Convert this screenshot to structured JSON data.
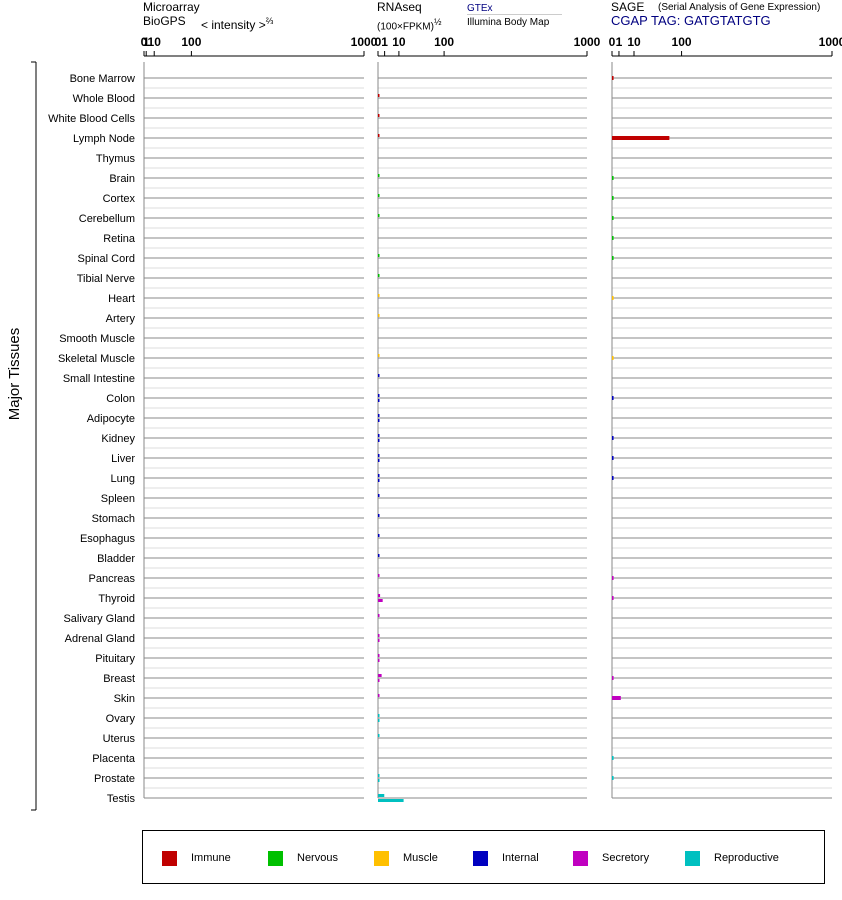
{
  "header": {
    "microarray_line1": "Microarray",
    "microarray_line2": "BioGPS",
    "microarray_scale": "< intensity >",
    "microarray_exp": "⅔",
    "rnaseq_line1": "RNAseq",
    "rnaseq_scale": "(100×FPKM)",
    "rnaseq_exp": "½",
    "gtex_label": "GTEx",
    "bodymap_label": "Illumina Body Map",
    "sage_line1": "SAGE",
    "sage_desc": "(Serial Analysis of Gene Expression)",
    "sage_tag": "CGAP TAG: GATGTATGTG"
  },
  "y_group_label": "Major Tissues",
  "legend": [
    {
      "label": "Immune",
      "color": "#c00000"
    },
    {
      "label": "Nervous",
      "color": "#00c000"
    },
    {
      "label": "Muscle",
      "color": "#ffc000"
    },
    {
      "label": "Internal",
      "color": "#0000c0"
    },
    {
      "label": "Secretory",
      "color": "#c000c0"
    },
    {
      "label": "Reproductive",
      "color": "#00c0c0"
    }
  ],
  "chart_data": {
    "type": "bar",
    "categories": [
      "Bone Marrow",
      "Whole Blood",
      "White Blood Cells",
      "Lymph Node",
      "Thymus",
      "Brain",
      "Cortex",
      "Cerebellum",
      "Retina",
      "Spinal Cord",
      "Tibial Nerve",
      "Heart",
      "Artery",
      "Smooth Muscle",
      "Skeletal Muscle",
      "Small Intestine",
      "Colon",
      "Adipocyte",
      "Kidney",
      "Liver",
      "Lung",
      "Spleen",
      "Stomach",
      "Esophagus",
      "Bladder",
      "Pancreas",
      "Thyroid",
      "Salivary Gland",
      "Adrenal Gland",
      "Pituitary",
      "Breast",
      "Skin",
      "Ovary",
      "Uterus",
      "Placenta",
      "Prostate",
      "Testis"
    ],
    "category_group": [
      "Immune",
      "Immune",
      "Immune",
      "Immune",
      "Immune",
      "Nervous",
      "Nervous",
      "Nervous",
      "Nervous",
      "Nervous",
      "Nervous",
      "Muscle",
      "Muscle",
      "Muscle",
      "Muscle",
      "Internal",
      "Internal",
      "Internal",
      "Internal",
      "Internal",
      "Internal",
      "Internal",
      "Internal",
      "Internal",
      "Internal",
      "Secretory",
      "Secretory",
      "Secretory",
      "Secretory",
      "Secretory",
      "Secretory",
      "Secretory",
      "Reproductive",
      "Reproductive",
      "Reproductive",
      "Reproductive",
      "Reproductive"
    ],
    "axis_ticks": [
      0,
      1,
      10,
      100,
      1000
    ],
    "panels": [
      {
        "name": "Microarray",
        "scale": "intensity^(2/3)",
        "xlim": [
          0,
          1000
        ],
        "series": [
          {
            "values": [
              null,
              null,
              null,
              null,
              null,
              null,
              null,
              null,
              null,
              null,
              null,
              null,
              null,
              null,
              null,
              null,
              null,
              null,
              null,
              null,
              null,
              null,
              null,
              null,
              null,
              null,
              null,
              null,
              null,
              null,
              null,
              null,
              null,
              null,
              null,
              null,
              null
            ]
          }
        ]
      },
      {
        "name": "RNAseq",
        "scale": "(100×FPKM)^(1/2)",
        "xlim": [
          0,
          1000
        ],
        "series": [
          {
            "name": "GTEx",
            "values": [
              null,
              0.05,
              0.05,
              0.05,
              null,
              0.05,
              0.05,
              0.05,
              null,
              0.05,
              0.05,
              0.05,
              0.05,
              null,
              0.05,
              0.05,
              0.05,
              0.05,
              0.05,
              0.05,
              0.05,
              0.05,
              0.05,
              0.05,
              0.05,
              0.05,
              0.1,
              0.05,
              0.05,
              0.05,
              0.3,
              0.05,
              0.05,
              0.05,
              null,
              0.05,
              0.9
            ]
          },
          {
            "name": "Illumina Body Map",
            "values": [
              null,
              null,
              null,
              null,
              null,
              null,
              null,
              null,
              null,
              null,
              null,
              null,
              null,
              null,
              null,
              null,
              0.05,
              0.05,
              0.05,
              0.05,
              0.05,
              null,
              null,
              null,
              null,
              null,
              0.5,
              null,
              0.05,
              0.05,
              0.05,
              null,
              0.05,
              null,
              null,
              0.05,
              15
            ]
          }
        ]
      },
      {
        "name": "SAGE",
        "scale": "",
        "xlim": [
          0,
          1000
        ],
        "series": [
          {
            "values": [
              0.05,
              null,
              null,
              68,
              null,
              0.05,
              0.05,
              0.05,
              0.05,
              0.05,
              null,
              0.05,
              null,
              null,
              0.05,
              null,
              0.05,
              null,
              0.05,
              0.05,
              0.05,
              null,
              null,
              null,
              null,
              0.05,
              0.05,
              null,
              null,
              null,
              0.05,
              1.6,
              null,
              null,
              0.05,
              0.05,
              null
            ]
          }
        ]
      }
    ]
  }
}
